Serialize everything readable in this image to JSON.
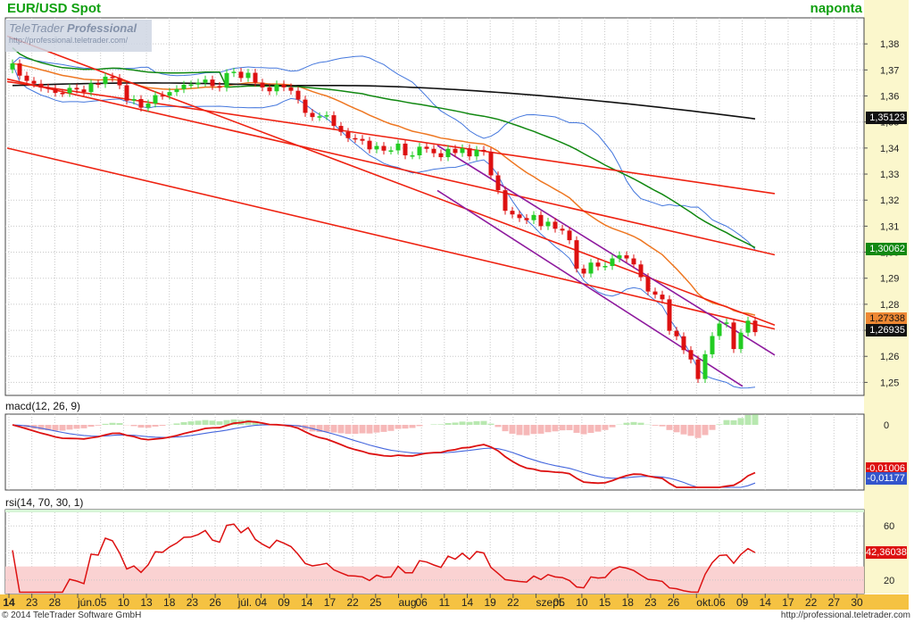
{
  "header": {
    "title": "EUR/USD Spot",
    "period": "naponta"
  },
  "watermark": {
    "brand": "TeleTrader",
    "brand_bold": "Professional",
    "url": "http://professional.teletrader.com/"
  },
  "footer": {
    "copyright": "© 2014 TeleTrader Software GmbH",
    "url": "http://professional.teletrader.com"
  },
  "colors": {
    "background": "#ffffff",
    "axis_panel": "#fbf7cc",
    "date_axis": "#f5c242",
    "up_candle": "#22cc22",
    "down_candle": "#dd1111",
    "trend_lines": "#ee2211",
    "channel": "#8e1a9e",
    "ema_fast": "#ee7722",
    "ma_slow": "#118811",
    "ma_long": "#111111",
    "bollinger": "#4477dd"
  },
  "chart_data": [
    {
      "type": "candlestick",
      "title": "EUR/USD Spot",
      "ylim": [
        1.245,
        1.39
      ],
      "y_ticks": [
        "1,25",
        "1,26",
        "1,27",
        "1,28",
        "1,29",
        "1,30",
        "1,31",
        "1,32",
        "1,33",
        "1,34",
        "1,35",
        "1,36",
        "1,37",
        "1,38"
      ],
      "x_ticks": [
        "14",
        "23",
        "28",
        "jún.",
        "05",
        "10",
        "13",
        "18",
        "23",
        "26",
        "júl.",
        "04",
        "09",
        "14",
        "17",
        "22",
        "25",
        "aug.",
        "06",
        "11",
        "14",
        "19",
        "22",
        "szept.",
        "05",
        "10",
        "15",
        "18",
        "23",
        "26",
        "okt.",
        "06",
        "09",
        "14",
        "17",
        "22",
        "27",
        "30"
      ],
      "last_values": [
        "1,35123",
        "1,30062",
        "1,27338",
        "1,26935"
      ],
      "close": [
        1.3725,
        1.3678,
        1.3658,
        1.3647,
        1.3632,
        1.3627,
        1.3612,
        1.3611,
        1.3631,
        1.3625,
        1.3615,
        1.3648,
        1.3646,
        1.3674,
        1.3669,
        1.3641,
        1.3582,
        1.3588,
        1.3555,
        1.3571,
        1.3603,
        1.3601,
        1.3615,
        1.3626,
        1.3643,
        1.3644,
        1.3651,
        1.3663,
        1.3638,
        1.3632,
        1.3688,
        1.3693,
        1.3669,
        1.3689,
        1.3651,
        1.3633,
        1.3618,
        1.3644,
        1.3633,
        1.362,
        1.3586,
        1.3535,
        1.3519,
        1.3522,
        1.3526,
        1.3485,
        1.3462,
        1.3438,
        1.3435,
        1.3428,
        1.3395,
        1.3408,
        1.339,
        1.3391,
        1.3417,
        1.3372,
        1.3372,
        1.3405,
        1.3397,
        1.338,
        1.3365,
        1.3397,
        1.3381,
        1.3399,
        1.3368,
        1.3393,
        1.3386,
        1.3295,
        1.3238,
        1.3159,
        1.3145,
        1.3131,
        1.3123,
        1.3143,
        1.31,
        1.3117,
        1.309,
        1.3083,
        1.3046,
        1.2937,
        1.2918,
        1.296,
        1.2945,
        1.2947,
        1.2976,
        1.2988,
        1.2976,
        1.2953,
        1.2904,
        1.2849,
        1.2837,
        1.2819,
        1.2698,
        1.2677,
        1.2624,
        1.2588,
        1.2513,
        1.2608,
        1.2678,
        1.2726,
        1.273,
        1.2628,
        1.2691,
        1.2737,
        1.2693
      ],
      "ma_long_range": [
        1.364,
        1.3512
      ],
      "ma_slow_last": 1.30062,
      "ema_fast_last": 1.27338,
      "candle_last": 1.26935
    },
    {
      "type": "line",
      "title": "macd(12, 26, 9)",
      "y_ticks": [
        "0"
      ],
      "series": [
        {
          "name": "macd",
          "last": "-0,01006"
        },
        {
          "name": "signal",
          "last": "-0,01177"
        }
      ]
    },
    {
      "type": "line",
      "title": "rsi(14, 70, 30, 1)",
      "ylim": [
        10,
        72
      ],
      "y_ticks": [
        "60",
        "40",
        "20"
      ],
      "series": [
        {
          "name": "rsi",
          "last": "42,36038"
        }
      ]
    }
  ]
}
